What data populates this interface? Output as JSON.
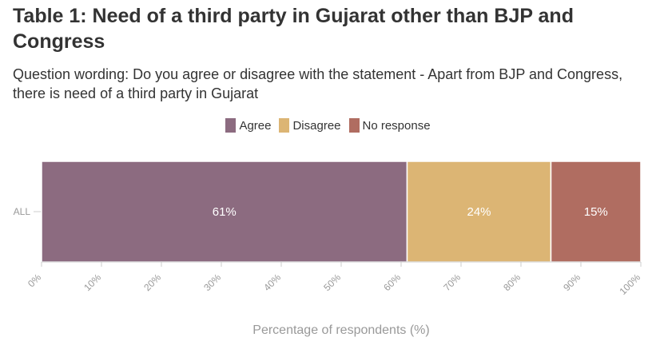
{
  "title": "Table 1: Need of a third party in Gujarat other than BJP and Congress",
  "subtitle": "Question wording: Do you agree or disagree with the statement - Apart from BJP and Congress, there is need of a third party in Gujarat",
  "legend": [
    {
      "label": "Agree",
      "color": "#8c6b80"
    },
    {
      "label": "Disagree",
      "color": "#dcb574"
    },
    {
      "label": "No response",
      "color": "#b06d61"
    }
  ],
  "chart_data": {
    "type": "bar",
    "orientation": "horizontal",
    "stacked": true,
    "categories": [
      "ALL"
    ],
    "series": [
      {
        "name": "Agree",
        "values": [
          61
        ],
        "color": "#8c6b80"
      },
      {
        "name": "Disagree",
        "values": [
          24
        ],
        "color": "#dcb574"
      },
      {
        "name": "No response",
        "values": [
          15
        ],
        "color": "#b06d61"
      }
    ],
    "data_labels": [
      "61%",
      "24%",
      "15%"
    ],
    "x_ticks": [
      "0%",
      "10%",
      "20%",
      "30%",
      "40%",
      "50%",
      "60%",
      "70%",
      "80%",
      "90%",
      "100%"
    ],
    "xlabel": "Percentage of respondents (%)",
    "ylabel": "",
    "xlim": [
      0,
      100
    ],
    "grid": false,
    "legend_position": "top-center"
  }
}
